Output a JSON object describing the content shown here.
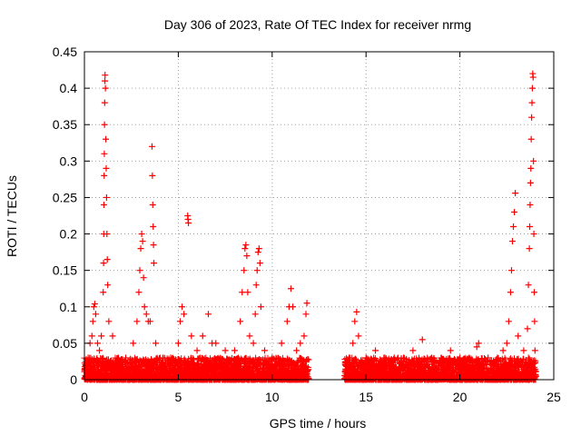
{
  "chart_data": {
    "type": "scatter",
    "title": "Day 306 of 2023, Rate Of TEC Index for receiver nrmg",
    "xlabel": "GPS time / hours",
    "ylabel": "ROTI / TECUs",
    "xlim": [
      0,
      25
    ],
    "ylim": [
      0,
      0.45
    ],
    "x_ticks": [
      0,
      5,
      10,
      15,
      20,
      25
    ],
    "x_tick_labels": [
      "0",
      "5",
      "10",
      "15",
      "20",
      "25"
    ],
    "y_ticks": [
      0,
      0.05,
      0.1,
      0.15,
      0.2,
      0.25,
      0.3,
      0.35,
      0.4,
      0.45
    ],
    "y_tick_labels": [
      "0",
      "0.05",
      "0.1",
      "0.15",
      "0.2",
      "0.25",
      "0.3",
      "0.35",
      "0.4",
      "0.45"
    ],
    "grid": true,
    "marker": "+",
    "marker_color": "#ff0000",
    "series": [
      {
        "name": "ROTI",
        "points": [
          [
            0.1,
            0.02
          ],
          [
            0.2,
            0.03
          ],
          [
            0.3,
            0.05
          ],
          [
            0.4,
            0.06
          ],
          [
            0.45,
            0.08
          ],
          [
            0.5,
            0.1
          ],
          [
            0.55,
            0.104
          ],
          [
            0.6,
            0.09
          ],
          [
            0.7,
            0.05
          ],
          [
            0.8,
            0.04
          ],
          [
            0.9,
            0.06
          ],
          [
            1.0,
            0.12
          ],
          [
            1.02,
            0.16
          ],
          [
            1.03,
            0.2
          ],
          [
            1.04,
            0.24
          ],
          [
            1.05,
            0.28
          ],
          [
            1.06,
            0.31
          ],
          [
            1.07,
            0.35
          ],
          [
            1.08,
            0.38
          ],
          [
            1.09,
            0.41
          ],
          [
            1.1,
            0.418
          ],
          [
            1.12,
            0.4
          ],
          [
            1.14,
            0.33
          ],
          [
            1.16,
            0.29
          ],
          [
            1.18,
            0.25
          ],
          [
            1.2,
            0.2
          ],
          [
            1.22,
            0.165
          ],
          [
            1.24,
            0.13
          ],
          [
            1.3,
            0.08
          ],
          [
            1.5,
            0.06
          ],
          [
            1.8,
            0.03
          ],
          [
            2.2,
            0.03
          ],
          [
            2.6,
            0.05
          ],
          [
            2.8,
            0.08
          ],
          [
            2.9,
            0.12
          ],
          [
            2.95,
            0.15
          ],
          [
            3.0,
            0.18
          ],
          [
            3.05,
            0.2
          ],
          [
            3.1,
            0.19
          ],
          [
            3.15,
            0.14
          ],
          [
            3.2,
            0.1
          ],
          [
            3.3,
            0.09
          ],
          [
            3.4,
            0.08
          ],
          [
            3.5,
            0.08
          ],
          [
            3.6,
            0.32
          ],
          [
            3.62,
            0.28
          ],
          [
            3.64,
            0.24
          ],
          [
            3.66,
            0.21
          ],
          [
            3.68,
            0.185
          ],
          [
            3.7,
            0.16
          ],
          [
            3.8,
            0.05
          ],
          [
            4.2,
            0.03
          ],
          [
            4.6,
            0.03
          ],
          [
            5.0,
            0.05
          ],
          [
            5.1,
            0.08
          ],
          [
            5.2,
            0.1
          ],
          [
            5.3,
            0.09
          ],
          [
            5.5,
            0.225
          ],
          [
            5.52,
            0.22
          ],
          [
            5.54,
            0.215
          ],
          [
            5.7,
            0.06
          ],
          [
            6.0,
            0.04
          ],
          [
            6.3,
            0.06
          ],
          [
            6.6,
            0.09
          ],
          [
            6.8,
            0.05
          ],
          [
            7.0,
            0.05
          ],
          [
            7.5,
            0.04
          ],
          [
            8.0,
            0.04
          ],
          [
            8.3,
            0.08
          ],
          [
            8.4,
            0.12
          ],
          [
            8.5,
            0.15
          ],
          [
            8.55,
            0.18
          ],
          [
            8.6,
            0.185
          ],
          [
            8.65,
            0.17
          ],
          [
            8.7,
            0.12
          ],
          [
            8.8,
            0.06
          ],
          [
            9.0,
            0.05
          ],
          [
            9.1,
            0.09
          ],
          [
            9.15,
            0.13
          ],
          [
            9.2,
            0.15
          ],
          [
            9.25,
            0.175
          ],
          [
            9.3,
            0.18
          ],
          [
            9.35,
            0.16
          ],
          [
            9.4,
            0.1
          ],
          [
            9.6,
            0.04
          ],
          [
            10.0,
            0.03
          ],
          [
            10.5,
            0.05
          ],
          [
            10.8,
            0.08
          ],
          [
            10.9,
            0.1
          ],
          [
            11.0,
            0.125
          ],
          [
            11.1,
            0.1
          ],
          [
            11.3,
            0.04
          ],
          [
            11.5,
            0.05
          ],
          [
            11.7,
            0.06
          ],
          [
            11.8,
            0.09
          ],
          [
            11.85,
            0.105
          ],
          [
            13.9,
            0.02
          ],
          [
            14.1,
            0.03
          ],
          [
            14.3,
            0.05
          ],
          [
            14.4,
            0.08
          ],
          [
            14.5,
            0.093
          ],
          [
            14.6,
            0.06
          ],
          [
            15.0,
            0.03
          ],
          [
            15.5,
            0.04
          ],
          [
            16.0,
            0.03
          ],
          [
            16.5,
            0.03
          ],
          [
            17.0,
            0.03
          ],
          [
            17.5,
            0.04
          ],
          [
            18.0,
            0.055
          ],
          [
            18.5,
            0.03
          ],
          [
            19.0,
            0.03
          ],
          [
            19.5,
            0.04
          ],
          [
            20.0,
            0.03
          ],
          [
            20.5,
            0.03
          ],
          [
            20.9,
            0.045
          ],
          [
            21.0,
            0.05
          ],
          [
            21.5,
            0.03
          ],
          [
            22.0,
            0.03
          ],
          [
            22.3,
            0.04
          ],
          [
            22.5,
            0.05
          ],
          [
            22.6,
            0.08
          ],
          [
            22.7,
            0.12
          ],
          [
            22.75,
            0.15
          ],
          [
            22.8,
            0.19
          ],
          [
            22.85,
            0.21
          ],
          [
            22.9,
            0.23
          ],
          [
            22.95,
            0.256
          ],
          [
            23.1,
            0.06
          ],
          [
            23.4,
            0.04
          ],
          [
            23.6,
            0.07
          ],
          [
            23.65,
            0.13
          ],
          [
            23.7,
            0.18
          ],
          [
            23.72,
            0.21
          ],
          [
            23.74,
            0.24
          ],
          [
            23.76,
            0.27
          ],
          [
            23.78,
            0.29
          ],
          [
            23.8,
            0.33
          ],
          [
            23.82,
            0.36
          ],
          [
            23.84,
            0.38
          ],
          [
            23.86,
            0.4
          ],
          [
            23.88,
            0.42
          ],
          [
            23.9,
            0.415
          ],
          [
            23.92,
            0.3
          ],
          [
            23.94,
            0.2
          ],
          [
            23.96,
            0.12
          ],
          [
            23.98,
            0.08
          ],
          [
            24.0,
            0.04
          ]
        ]
      }
    ]
  }
}
